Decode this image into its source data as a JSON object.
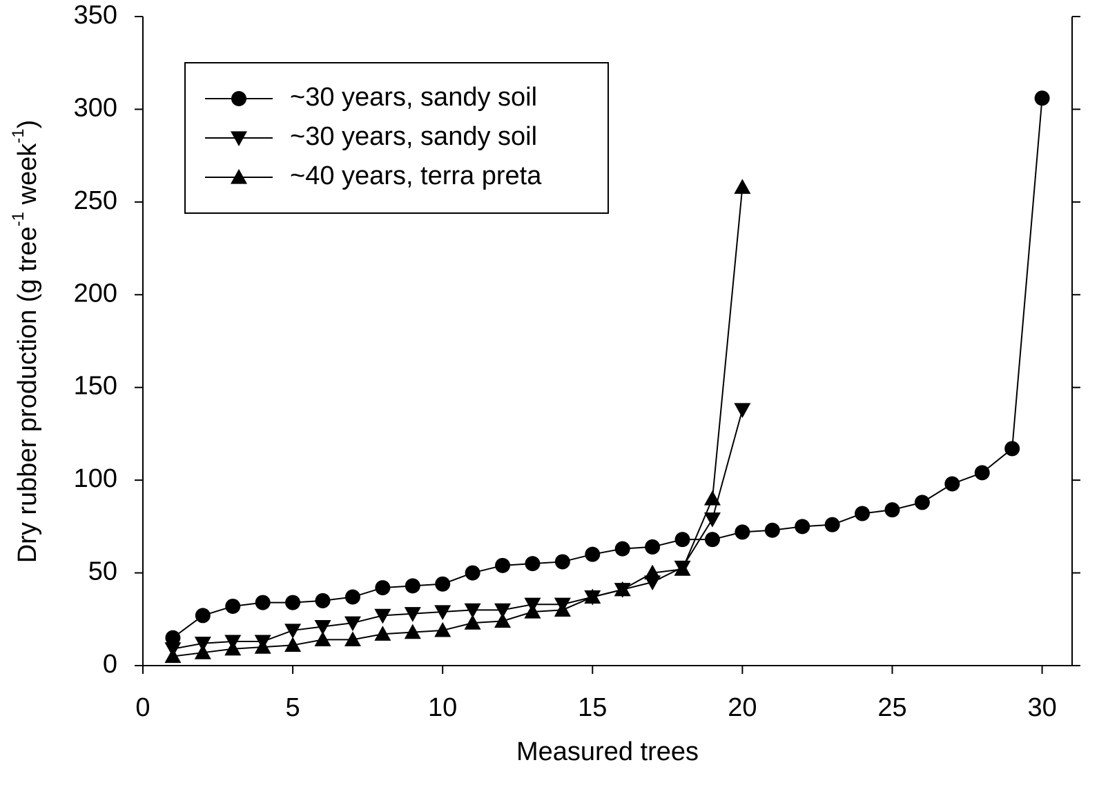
{
  "chart_data": {
    "type": "line",
    "x_label": "Measured trees",
    "y_label": [
      "Dry rubber production (g tree",
      "-1",
      " week",
      "-1",
      ")"
    ],
    "xlim": [
      0,
      31
    ],
    "xticks": [
      0,
      5,
      10,
      15,
      20,
      25,
      30
    ],
    "ylim": [
      0,
      350
    ],
    "yticks": [
      0,
      50,
      100,
      150,
      200,
      250,
      300,
      350
    ],
    "legend": "upper left",
    "series": [
      {
        "name": "~30 years, sandy soil",
        "color": "#000000",
        "marker": "circle",
        "x": [
          1,
          2,
          3,
          4,
          5,
          6,
          7,
          8,
          9,
          10,
          11,
          12,
          13,
          14,
          15,
          16,
          17,
          18,
          19,
          20,
          21,
          22,
          23,
          24,
          25,
          26,
          27,
          28,
          29,
          30
        ],
        "values": [
          15,
          27,
          32,
          34,
          34,
          35,
          37,
          42,
          43,
          44,
          50,
          54,
          55,
          56,
          60,
          63,
          64,
          68,
          68,
          72,
          73,
          75,
          76,
          82,
          84,
          88,
          98,
          104,
          117,
          306
        ]
      },
      {
        "name": "~30 years, sandy soil",
        "color": "#000000",
        "marker": "triangle-down",
        "x": [
          1,
          2,
          3,
          4,
          5,
          6,
          7,
          8,
          9,
          10,
          11,
          12,
          13,
          14,
          15,
          16,
          17,
          18,
          19,
          20
        ],
        "values": [
          9,
          12,
          13,
          13,
          19,
          21,
          23,
          27,
          28,
          29,
          30,
          30,
          33,
          33,
          37,
          41,
          45,
          53,
          79,
          138
        ]
      },
      {
        "name": "~40 years, terra preta",
        "color": "#000000",
        "marker": "triangle-up",
        "x": [
          1,
          2,
          3,
          4,
          5,
          6,
          7,
          8,
          9,
          10,
          11,
          12,
          13,
          14,
          15,
          16,
          17,
          18,
          19,
          20
        ],
        "values": [
          5,
          7,
          9,
          10,
          11,
          14,
          14,
          17,
          18,
          19,
          23,
          24,
          29,
          30,
          37,
          41,
          50,
          52,
          90,
          258
        ]
      }
    ]
  }
}
